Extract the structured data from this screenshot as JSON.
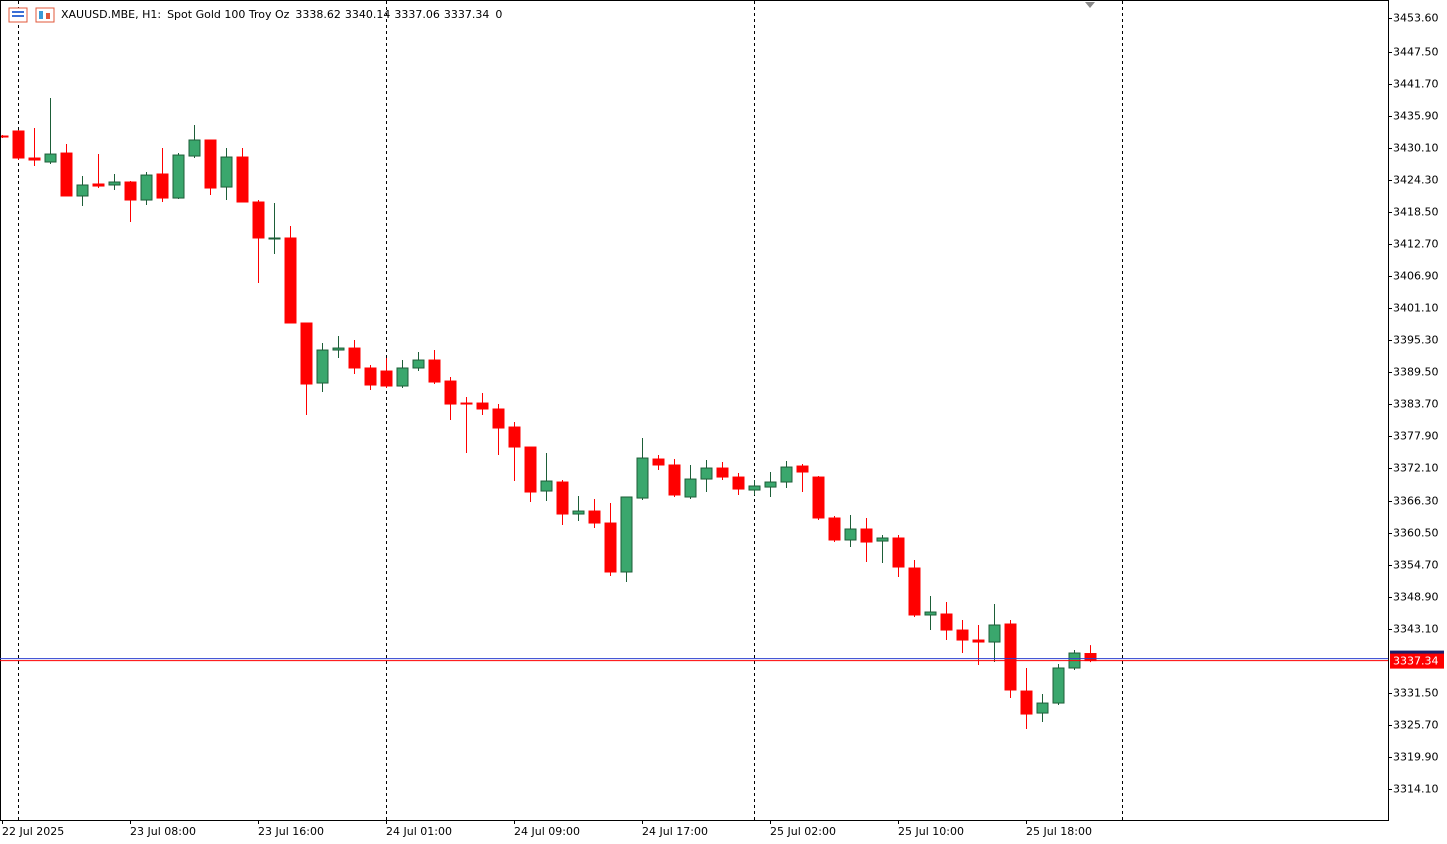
{
  "chart_data": {
    "type": "candlestick",
    "symbol": "XAUUSD.MBE, H1:",
    "description": "Spot Gold 100 Troy Oz",
    "volume": 0,
    "categories": [
      "22 Jul 2025",
      null,
      null,
      null,
      null,
      null,
      null,
      null,
      "23 Jul 08:00",
      null,
      null,
      null,
      null,
      null,
      null,
      null,
      "23 Jul 16:00",
      null,
      null,
      null,
      null,
      null,
      null,
      null,
      "24 Jul 01:00",
      null,
      null,
      null,
      null,
      null,
      null,
      null,
      "24 Jul 09:00",
      null,
      null,
      null,
      null,
      null,
      null,
      null,
      "24 Jul 17:00",
      null,
      null,
      null,
      null,
      null,
      null,
      null,
      "25 Jul 02:00",
      null,
      null,
      null,
      null,
      null,
      null,
      null,
      "25 Jul 10:00",
      null,
      null,
      null,
      null,
      null,
      null,
      null,
      "25 Jul 18:00",
      null,
      null,
      null,
      null
    ],
    "open": [
      3432.25,
      3433.16,
      3428.27,
      3427.55,
      3429.17,
      3421.4,
      3423.57,
      3423.39,
      3423.93,
      3420.67,
      3425.38,
      3421.03,
      3428.63,
      3431.53,
      3423.02,
      3428.45,
      3420.31,
      3413.62,
      3413.8,
      3398.42,
      3387.56,
      3393.53,
      3393.89,
      3390.28,
      3389.73,
      3387.02,
      3390.28,
      3391.72,
      3387.92,
      3383.94,
      3383.94,
      3382.86,
      3379.6,
      3375.98,
      3368.02,
      3369.65,
      3363.86,
      3364.4,
      3362.23,
      3353.37,
      3366.75,
      3373.81,
      3372.73,
      3366.94,
      3370.19,
      3372.18,
      3370.55,
      3368.2,
      3368.74,
      3369.65,
      3372.54,
      3370.55,
      3363.14,
      3359.16,
      3361.15,
      3358.97,
      3359.52,
      3354.09,
      3345.59,
      3345.77,
      3342.87,
      3341.06,
      3340.7,
      3343.96,
      3331.83,
      3327.85,
      3329.66,
      3336.0,
      3338.62
    ],
    "high": [
      3432.43,
      3433.34,
      3433.7,
      3439.13,
      3430.8,
      3425.01,
      3428.99,
      3425.38,
      3424.11,
      3425.74,
      3430.08,
      3429.17,
      3434.24,
      3431.53,
      3430.08,
      3430.08,
      3420.67,
      3420.13,
      3415.97,
      3398.42,
      3394.8,
      3396.07,
      3395.34,
      3390.82,
      3392.08,
      3391.72,
      3393.17,
      3393.53,
      3388.65,
      3385.03,
      3385.75,
      3383.76,
      3380.51,
      3375.98,
      3374.9,
      3370.01,
      3367.12,
      3366.57,
      3365.85,
      3366.94,
      3377.61,
      3374.53,
      3373.81,
      3372.73,
      3373.63,
      3373.27,
      3371.28,
      3370.01,
      3371.46,
      3373.45,
      3372.91,
      3370.73,
      3363.5,
      3363.68,
      3363.14,
      3360.06,
      3360.06,
      3355.54,
      3349.02,
      3347.94,
      3344.68,
      3343.78,
      3347.58,
      3344.68,
      3336.0,
      3331.29,
      3336.72,
      3339.25,
      3340.14
    ],
    "low": [
      3431.89,
      3427.91,
      3426.82,
      3427.18,
      3421.4,
      3419.59,
      3422.84,
      3422.48,
      3416.69,
      3419.77,
      3420.31,
      3420.85,
      3428.27,
      3421.58,
      3420.67,
      3420.31,
      3405.65,
      3410.9,
      3398.42,
      3381.77,
      3385.93,
      3392.08,
      3389.19,
      3386.29,
      3386.66,
      3386.66,
      3389.73,
      3387.38,
      3380.87,
      3374.9,
      3381.77,
      3374.53,
      3369.83,
      3366.03,
      3366.21,
      3361.87,
      3362.59,
      3361.33,
      3352.64,
      3351.56,
      3366.39,
      3371.82,
      3366.94,
      3366.57,
      3367.84,
      3370.01,
      3367.3,
      3367.3,
      3366.94,
      3368.56,
      3367.84,
      3362.77,
      3358.79,
      3357.89,
      3355.17,
      3354.99,
      3352.46,
      3345.22,
      3342.87,
      3341.06,
      3338.71,
      3336.54,
      3337.08,
      3330.57,
      3324.96,
      3326.23,
      3329.3,
      3335.63,
      3337.06
    ],
    "close": [
      3432.07,
      3428.27,
      3427.91,
      3428.99,
      3421.4,
      3423.39,
      3423.2,
      3423.93,
      3420.67,
      3425.19,
      3421.03,
      3428.81,
      3431.53,
      3422.84,
      3428.45,
      3420.31,
      3413.8,
      3413.8,
      3398.42,
      3387.38,
      3393.53,
      3393.89,
      3390.28,
      3387.2,
      3387.02,
      3390.28,
      3391.72,
      3387.74,
      3383.76,
      3383.76,
      3382.86,
      3379.42,
      3375.98,
      3367.84,
      3369.83,
      3363.86,
      3364.4,
      3362.23,
      3353.37,
      3366.94,
      3373.99,
      3372.73,
      3367.3,
      3370.19,
      3372.18,
      3370.55,
      3368.38,
      3368.93,
      3369.65,
      3372.36,
      3371.46,
      3363.14,
      3359.16,
      3361.15,
      3358.79,
      3359.52,
      3354.27,
      3345.59,
      3346.13,
      3342.87,
      3341.06,
      3340.7,
      3343.78,
      3332.02,
      3327.67,
      3329.66,
      3336.0,
      3338.71,
      3337.34
    ],
    "up_color": "#3aa76d",
    "down_color": "#ff0000",
    "ylim": [
      3308.5,
      3456.86
    ],
    "yticks": [
      {
        "value": 3453.6,
        "label": "3453.60"
      },
      {
        "value": 3447.5,
        "label": "3447.50"
      },
      {
        "value": 3441.7,
        "label": "3441.70"
      },
      {
        "value": 3435.9,
        "label": "3435.90"
      },
      {
        "value": 3430.1,
        "label": "3430.10"
      },
      {
        "value": 3424.3,
        "label": "3424.30"
      },
      {
        "value": 3418.5,
        "label": "3418.50"
      },
      {
        "value": 3412.7,
        "label": "3412.70"
      },
      {
        "value": 3406.9,
        "label": "3406.90"
      },
      {
        "value": 3401.1,
        "label": "3401.10"
      },
      {
        "value": 3395.3,
        "label": "3395.30"
      },
      {
        "value": 3389.5,
        "label": "3389.50"
      },
      {
        "value": 3383.7,
        "label": "3383.70"
      },
      {
        "value": 3377.9,
        "label": "3377.90"
      },
      {
        "value": 3372.1,
        "label": "3372.10"
      },
      {
        "value": 3366.3,
        "label": "3366.30"
      },
      {
        "value": 3360.5,
        "label": "3360.50"
      },
      {
        "value": 3354.7,
        "label": "3354.70"
      },
      {
        "value": 3348.9,
        "label": "3348.90"
      },
      {
        "value": 3343.1,
        "label": "3343.10"
      },
      {
        "value": 3331.5,
        "label": "3331.50"
      },
      {
        "value": 3325.7,
        "label": "3325.70"
      },
      {
        "value": 3319.9,
        "label": "3319.90"
      },
      {
        "value": 3314.1,
        "label": "3314.10"
      }
    ]
  }
}
